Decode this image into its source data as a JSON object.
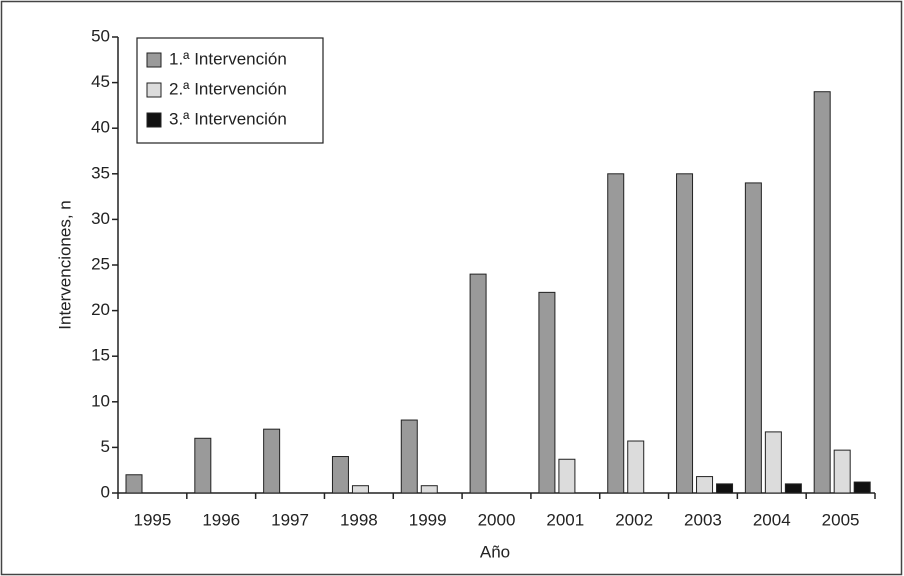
{
  "chart_data": {
    "type": "bar",
    "x_label": "Año",
    "y_label": "Intervenciones, n",
    "categories": [
      "1995",
      "1996",
      "1997",
      "1998",
      "1999",
      "2000",
      "2001",
      "2002",
      "2003",
      "2004",
      "2005"
    ],
    "series": [
      {
        "name": "1.ª Intervención",
        "color": "#9a9a9a",
        "values": [
          2,
          6,
          7,
          4,
          8,
          24,
          22,
          35,
          35,
          34,
          44
        ]
      },
      {
        "name": "2.ª Intervención",
        "color": "#dcdcdc",
        "values": [
          0,
          0,
          0,
          0.8,
          0.8,
          0,
          3.7,
          5.7,
          1.8,
          6.7,
          4.7
        ]
      },
      {
        "name": "3.ª Intervención",
        "color": "#111111",
        "values": [
          0,
          0,
          0,
          0,
          0,
          0,
          0,
          0,
          1,
          1,
          1.2
        ]
      }
    ],
    "ylim": [
      0,
      50
    ],
    "yticks": [
      0,
      5,
      10,
      15,
      20,
      25,
      30,
      35,
      40,
      45,
      50
    ],
    "legend": "upper-left"
  }
}
